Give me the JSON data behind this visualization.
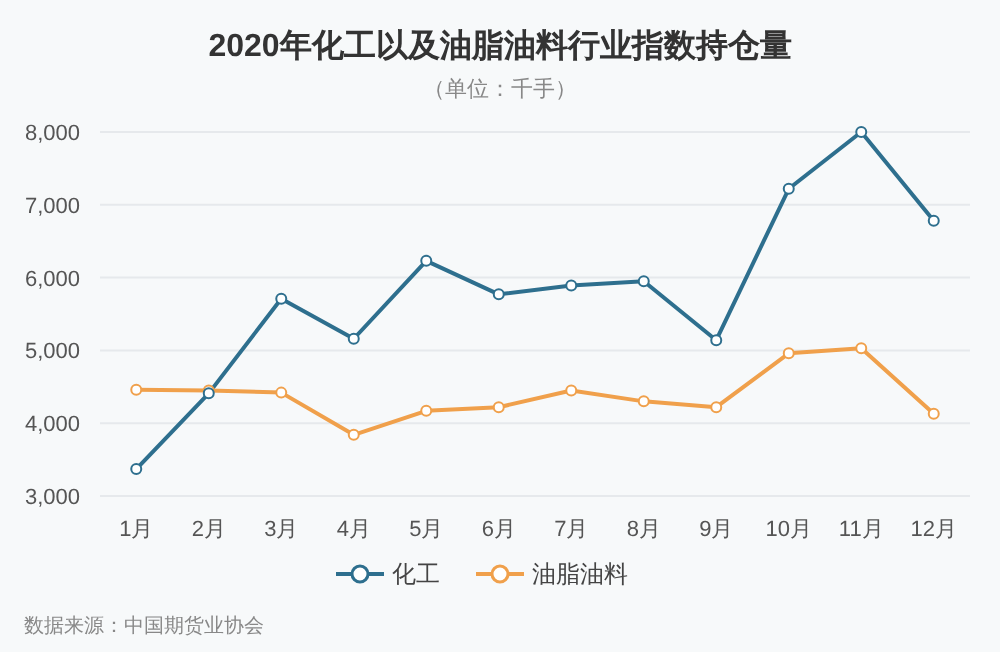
{
  "chart_data": {
    "type": "line",
    "title": "2020年化工以及油脂油料行业指数持仓量",
    "subtitle": "（单位：千手）",
    "categories": [
      "1月",
      "2月",
      "3月",
      "4月",
      "5月",
      "6月",
      "7月",
      "8月",
      "9月",
      "10月",
      "11月",
      "12月"
    ],
    "series": [
      {
        "name": "化工",
        "color": "#2e6f8e",
        "values": [
          3370,
          4410,
          5710,
          5160,
          6230,
          5770,
          5890,
          5950,
          5140,
          7220,
          8000,
          6780
        ]
      },
      {
        "name": "油脂油料",
        "color": "#f0a04b",
        "values": [
          4460,
          4450,
          4420,
          3840,
          4170,
          4220,
          4450,
          4300,
          4220,
          4960,
          5030,
          4130
        ]
      }
    ],
    "ylim": [
      3000,
      8000
    ],
    "yticks": [
      {
        "value": 3000,
        "label": "3,000"
      },
      {
        "value": 4000,
        "label": "4,000"
      },
      {
        "value": 5000,
        "label": "5,000"
      },
      {
        "value": 6000,
        "label": "6,000"
      },
      {
        "value": 7000,
        "label": "7,000"
      },
      {
        "value": 8000,
        "label": "8,000"
      }
    ],
    "grid": "y",
    "legend": "bottom",
    "marker": "circle",
    "line_style": "solid",
    "annotations": [
      "数据来源：中国期货业协会"
    ]
  }
}
